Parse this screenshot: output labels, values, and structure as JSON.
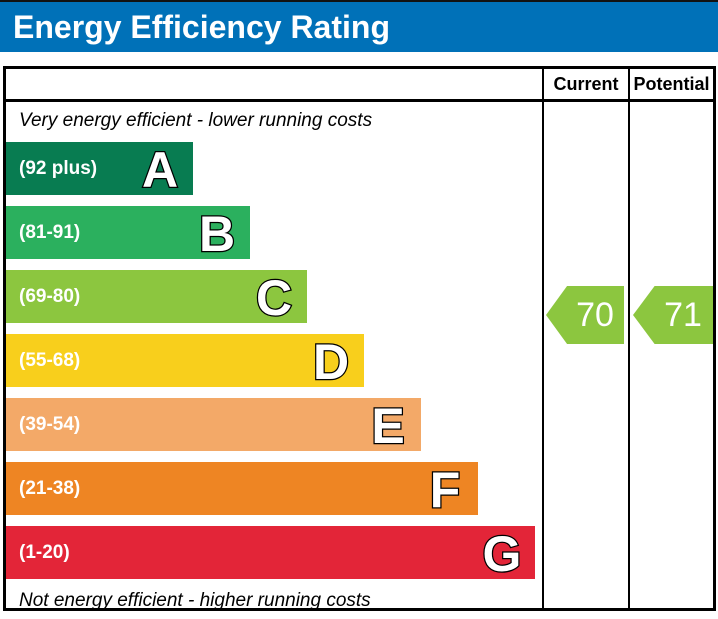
{
  "title": "Energy Efficiency Rating",
  "columns": {
    "current": "Current",
    "potential": "Potential"
  },
  "notes": {
    "top": "Very energy efficient - lower running costs",
    "bottom": "Not energy efficient - higher running costs"
  },
  "bands": [
    {
      "letter": "A",
      "range": "(92 plus)",
      "color": "#087C51"
    },
    {
      "letter": "B",
      "range": "(81-91)",
      "color": "#2BB05E"
    },
    {
      "letter": "C",
      "range": "(69-80)",
      "color": "#8CC63F"
    },
    {
      "letter": "D",
      "range": "(55-68)",
      "color": "#F8CF1C"
    },
    {
      "letter": "E",
      "range": "(39-54)",
      "color": "#F3A968"
    },
    {
      "letter": "F",
      "range": "(21-38)",
      "color": "#EE8523"
    },
    {
      "letter": "G",
      "range": "(1-20)",
      "color": "#E32538"
    }
  ],
  "ratings": {
    "current": {
      "value": "70",
      "color": "#8CC63F"
    },
    "potential": {
      "value": "71",
      "color": "#8CC63F"
    }
  },
  "theme": {
    "header_bg": "#0071B8",
    "border": "#000000"
  },
  "chart_data": {
    "type": "bar",
    "title": "Energy Efficiency Rating",
    "categories": [
      "A",
      "B",
      "C",
      "D",
      "E",
      "F",
      "G"
    ],
    "band_score_ranges": [
      "92 plus",
      "81-91",
      "69-80",
      "55-68",
      "39-54",
      "21-38",
      "1-20"
    ],
    "band_colors": [
      "#087C51",
      "#2BB05E",
      "#8CC63F",
      "#F8CF1C",
      "#F3A968",
      "#EE8523",
      "#E32538"
    ],
    "series": [
      {
        "name": "Current",
        "values": [
          70
        ],
        "band": "C"
      },
      {
        "name": "Potential",
        "values": [
          71
        ],
        "band": "C"
      }
    ],
    "annotations": [
      "Very energy efficient - lower running costs",
      "Not energy efficient - higher running costs"
    ],
    "legend_position": "none",
    "axis_range": [
      1,
      100
    ],
    "orientation": "horizontal"
  }
}
